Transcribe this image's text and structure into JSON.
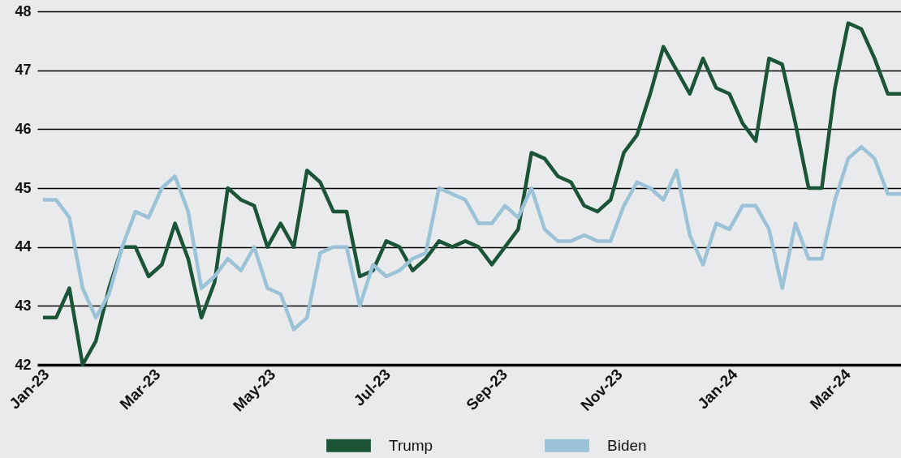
{
  "chart_data": {
    "type": "line",
    "x": [
      "2023-01-02",
      "2023-01-09",
      "2023-01-16",
      "2023-01-23",
      "2023-01-30",
      "2023-02-06",
      "2023-02-13",
      "2023-02-20",
      "2023-02-27",
      "2023-03-06",
      "2023-03-13",
      "2023-03-20",
      "2023-03-27",
      "2023-04-03",
      "2023-04-10",
      "2023-04-17",
      "2023-04-24",
      "2023-05-01",
      "2023-05-08",
      "2023-05-15",
      "2023-05-22",
      "2023-05-29",
      "2023-06-05",
      "2023-06-12",
      "2023-06-19",
      "2023-06-26",
      "2023-07-03",
      "2023-07-10",
      "2023-07-17",
      "2023-07-24",
      "2023-07-31",
      "2023-08-07",
      "2023-08-14",
      "2023-08-21",
      "2023-08-28",
      "2023-09-04",
      "2023-09-11",
      "2023-09-18",
      "2023-09-25",
      "2023-10-02",
      "2023-10-09",
      "2023-10-16",
      "2023-10-23",
      "2023-10-30",
      "2023-11-06",
      "2023-11-13",
      "2023-11-20",
      "2023-11-27",
      "2023-12-04",
      "2023-12-11",
      "2023-12-18",
      "2023-12-25",
      "2024-01-01",
      "2024-01-08",
      "2024-01-15",
      "2024-01-22",
      "2024-01-29",
      "2024-02-05",
      "2024-02-12",
      "2024-02-19",
      "2024-02-26",
      "2024-03-04",
      "2024-03-11",
      "2024-03-18",
      "2024-03-25",
      "2024-04-01"
    ],
    "series": [
      {
        "name": "Trump",
        "color": "#1b5436",
        "values": [
          42.8,
          42.8,
          43.3,
          42.0,
          42.4,
          43.3,
          44.0,
          44.0,
          43.5,
          43.7,
          44.4,
          43.8,
          42.8,
          43.4,
          45.0,
          44.8,
          44.7,
          44.0,
          44.4,
          44.0,
          45.3,
          45.1,
          44.6,
          44.6,
          43.5,
          43.6,
          44.1,
          44.0,
          43.6,
          43.8,
          44.1,
          44.0,
          44.1,
          44.0,
          43.7,
          44.0,
          44.3,
          45.6,
          45.5,
          45.2,
          45.1,
          44.7,
          44.6,
          44.8,
          45.6,
          45.9,
          46.6,
          47.4,
          47.0,
          46.6,
          47.2,
          46.7,
          46.6,
          46.1,
          45.8,
          47.2,
          47.1,
          46.1,
          45.0,
          45.0,
          46.7,
          47.8,
          47.7,
          47.2,
          46.6,
          46.6
        ]
      },
      {
        "name": "Biden",
        "color": "#9bc2d6",
        "values": [
          44.8,
          44.8,
          44.5,
          43.3,
          42.8,
          43.2,
          44.0,
          44.6,
          44.5,
          45.0,
          45.2,
          44.6,
          43.3,
          43.5,
          43.8,
          43.6,
          44.0,
          43.3,
          43.2,
          42.6,
          42.8,
          43.9,
          44.0,
          44.0,
          43.0,
          43.7,
          43.5,
          43.6,
          43.8,
          43.9,
          45.0,
          44.9,
          44.8,
          44.4,
          44.4,
          44.7,
          44.5,
          45.0,
          44.3,
          44.1,
          44.1,
          44.2,
          44.1,
          44.1,
          44.7,
          45.1,
          45.0,
          44.8,
          45.3,
          44.2,
          43.7,
          44.4,
          44.3,
          44.7,
          44.7,
          44.3,
          43.3,
          44.4,
          43.8,
          43.8,
          44.8,
          45.5,
          45.7,
          45.5,
          44.9,
          44.9
        ]
      }
    ],
    "xlim": [
      "2022-12-30",
      "2024-04-01"
    ],
    "xticks": [
      {
        "value": "2023-01-01",
        "label": "Jan-23"
      },
      {
        "value": "2023-03-01",
        "label": "Mar-23"
      },
      {
        "value": "2023-05-01",
        "label": "May-23"
      },
      {
        "value": "2023-07-01",
        "label": "Jul-23"
      },
      {
        "value": "2023-09-01",
        "label": "Sep-23"
      },
      {
        "value": "2023-11-01",
        "label": "Nov-23"
      },
      {
        "value": "2024-01-01",
        "label": "Jan-24"
      },
      {
        "value": "2024-03-01",
        "label": "Mar-24"
      }
    ],
    "ylim": [
      42,
      48
    ],
    "yticks": [
      42,
      43,
      44,
      45,
      46,
      47,
      48
    ],
    "grid": "y",
    "legend": "bottom",
    "marker": "none",
    "line_style": "solid"
  }
}
